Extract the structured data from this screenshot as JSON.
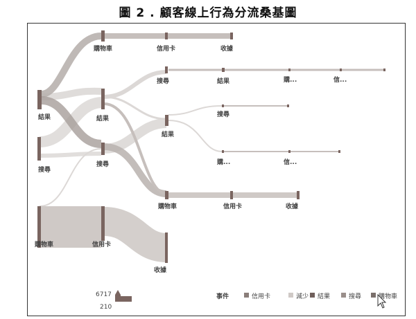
{
  "figure": {
    "title": "圖 2 . 顧客線上行為分流桑基圖"
  },
  "colors": {
    "node": "#7a6560",
    "flow_dark": "#b8b1ae",
    "flow_light": "#dcd8d6",
    "trail": "#c6bfbc"
  },
  "diagram": {
    "nodes": [
      {
        "id": "n_result_1",
        "label": "結果"
      },
      {
        "id": "n_search_1",
        "label": "搜尋"
      },
      {
        "id": "n_cart_1",
        "label": "購物車"
      },
      {
        "id": "n_cart_2",
        "label": "購物車"
      },
      {
        "id": "n_result_2",
        "label": "結果"
      },
      {
        "id": "n_search_2",
        "label": "搜尋"
      },
      {
        "id": "n_credit_2",
        "label": "信用卡"
      },
      {
        "id": "n_credit_3a",
        "label": "信用卡"
      },
      {
        "id": "n_search_3",
        "label": "搜尋"
      },
      {
        "id": "n_result_3",
        "label": "結果"
      },
      {
        "id": "n_cart_3",
        "label": "購物車"
      },
      {
        "id": "n_checkout_3",
        "label": "收據"
      },
      {
        "id": "n_checkout_4a",
        "label": "收據"
      },
      {
        "id": "n_result_4",
        "label": "結果"
      },
      {
        "id": "n_search_4",
        "label": "搜尋"
      },
      {
        "id": "n_buy_4",
        "label": "購..."
      },
      {
        "id": "n_credit_4",
        "label": "信用卡"
      },
      {
        "id": "n_buy_5",
        "label": "購..."
      },
      {
        "id": "n_credit_5",
        "label": "信..."
      },
      {
        "id": "n_checkout_5",
        "label": "收據"
      },
      {
        "id": "n_credit_6",
        "label": "信..."
      },
      {
        "id": "n_end_search_4",
        "label": ""
      },
      {
        "id": "n_end_result_4",
        "label": ""
      },
      {
        "id": "n_end_6",
        "label": ""
      },
      {
        "id": "n_end_7",
        "label": ""
      }
    ]
  },
  "size_legend": {
    "max": "6717",
    "min": "210"
  },
  "legend": {
    "title": "事件",
    "items": [
      {
        "label": "信用卡",
        "color": "#8a7e7a"
      },
      {
        "label": "減少",
        "color": "#cfc9c6"
      },
      {
        "label": "結果",
        "color": "#6f5f5b"
      },
      {
        "label": "搜尋",
        "color": "#9a8f8b"
      },
      {
        "label": "購物車",
        "color": "#7a6f6b"
      }
    ]
  }
}
